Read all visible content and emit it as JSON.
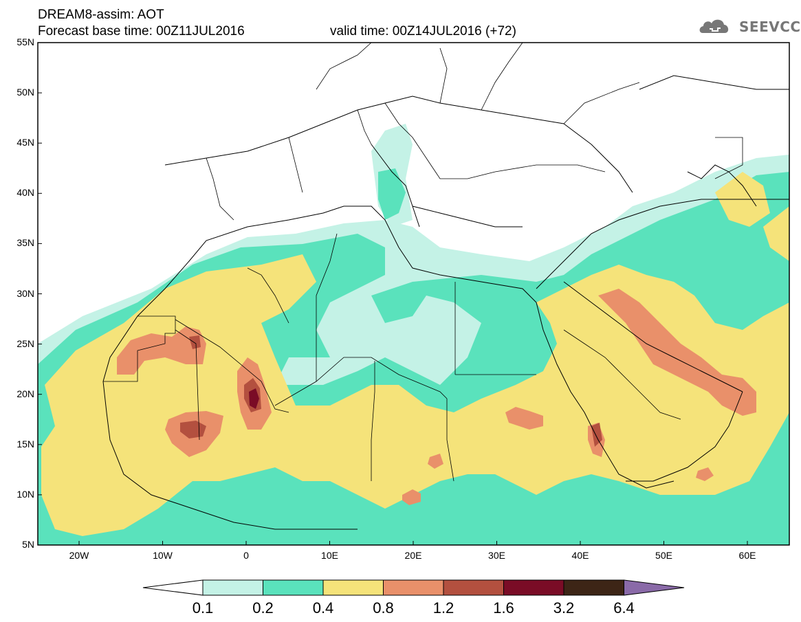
{
  "header": {
    "title": "DREAM8-assim: AOT",
    "base_time": "Forecast base time: 00Z11JUL2016",
    "valid_time": "valid time: 00Z14JUL2016 (+72)"
  },
  "logo": {
    "text": "SEEVCCC",
    "icon": "cloud-icon"
  },
  "map": {
    "variable": "AOT",
    "lat_labels": [
      "55N",
      "50N",
      "45N",
      "40N",
      "35N",
      "30N",
      "25N",
      "20N",
      "15N",
      "10N",
      "5N"
    ],
    "lon_labels": [
      "20W",
      "10W",
      "0",
      "10E",
      "20E",
      "30E",
      "40E",
      "50E",
      "60E"
    ]
  },
  "colorbar": {
    "labels": [
      "0.1",
      "0.2",
      "0.4",
      "0.8",
      "1.2",
      "1.6",
      "3.2",
      "6.4"
    ],
    "colors": [
      "#ffffff",
      "#c4f2e6",
      "#5ae2bc",
      "#f5e37a",
      "#e9906a",
      "#b3503f",
      "#7a0c26",
      "#3d2516",
      "#8a6aa8"
    ]
  },
  "colors": {
    "lev1": "#c4f2e6",
    "lev2": "#5ae2bc",
    "lev3": "#f5e37a",
    "lev4": "#e9906a",
    "lev5": "#b3503f",
    "lev6": "#7a0c26"
  }
}
